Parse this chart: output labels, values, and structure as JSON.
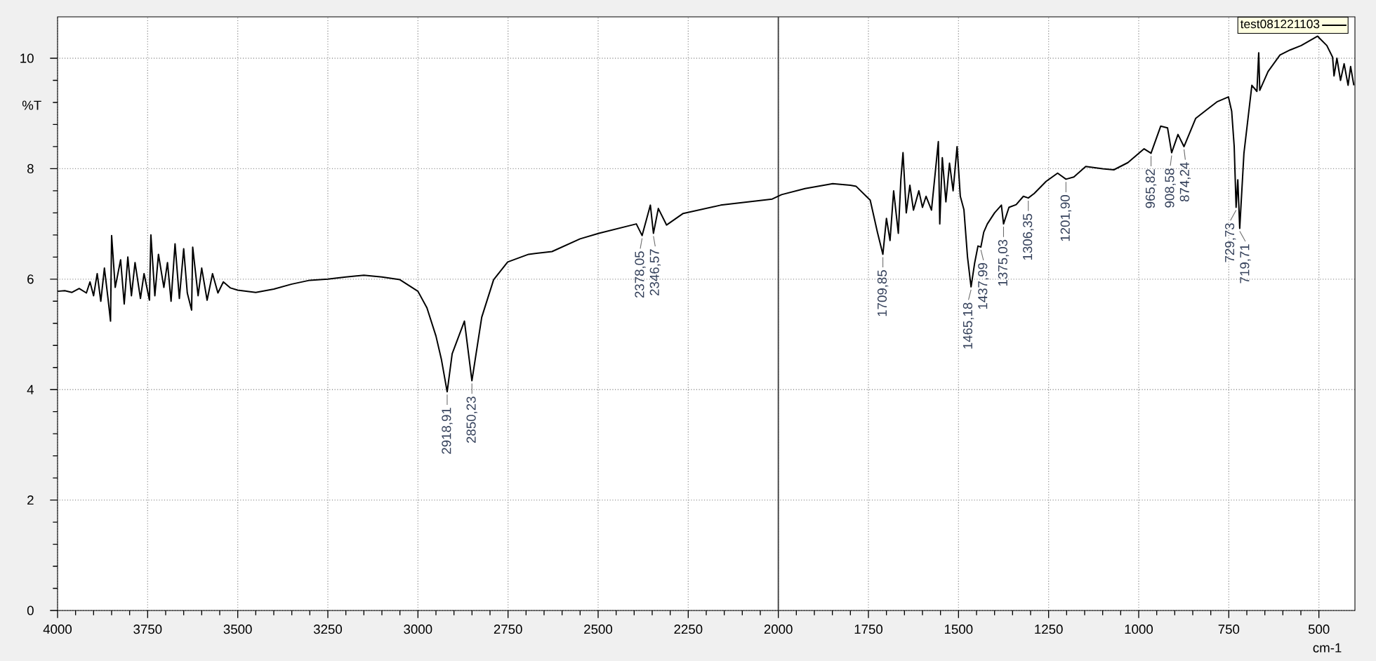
{
  "chart_data": {
    "type": "line",
    "xlabel": "cm-1",
    "ylabel": "%T",
    "xlim": [
      4000,
      400
    ],
    "ylim": [
      0,
      10.75
    ],
    "xticks": [
      4000,
      3750,
      3500,
      3250,
      3000,
      2750,
      2500,
      2250,
      2000,
      1750,
      1500,
      1250,
      1000,
      750,
      500
    ],
    "yticks": [
      0,
      2,
      4,
      6,
      8,
      10
    ],
    "grid": true,
    "legend": "top right",
    "ref_lines": [
      {
        "axis": "x",
        "value": 2000,
        "color": "#404040",
        "line_style": "solid"
      }
    ],
    "series": [
      {
        "name": "test081221103",
        "color": "#000000",
        "x": [
          4000,
          3980,
          3960,
          3940,
          3920,
          3910,
          3900,
          3890,
          3880,
          3870,
          3860,
          3853,
          3850,
          3840,
          3825,
          3815,
          3805,
          3795,
          3785,
          3770,
          3760,
          3745,
          3741,
          3730,
          3720,
          3705,
          3695,
          3685,
          3674,
          3662,
          3650,
          3640,
          3628,
          3625,
          3610,
          3600,
          3585,
          3570,
          3555,
          3540,
          3520,
          3500,
          3450,
          3400,
          3350,
          3300,
          3250,
          3200,
          3150,
          3100,
          3050,
          3000,
          2975,
          2950,
          2935,
          2918.91,
          2905,
          2871,
          2850.23,
          2823,
          2790,
          2751,
          2693,
          2628,
          2550,
          2498,
          2394,
          2378.05,
          2355,
          2346.57,
          2333,
          2310,
          2264,
          2160,
          2017,
          1991,
          1926,
          1849,
          1800,
          1784,
          1745,
          1725,
          1709.85,
          1700,
          1690,
          1680,
          1667,
          1660,
          1654,
          1645,
          1635,
          1625,
          1610,
          1600,
          1590,
          1575,
          1565,
          1556,
          1552,
          1545,
          1535,
          1525,
          1515,
          1504,
          1495,
          1485,
          1475,
          1465.18,
          1455,
          1446,
          1437.99,
          1430,
          1420,
          1400,
          1381,
          1375.03,
          1360,
          1340,
          1320,
          1306.35,
          1290,
          1257,
          1225,
          1201.9,
          1180,
          1147,
          1100,
          1069,
          1030,
          985,
          965.82,
          939,
          920,
          908.58,
          891,
          874.24,
          842,
          809,
          783,
          751,
          742,
          735,
          729.73,
          725,
          719.71,
          708,
          686,
          672,
          667,
          664,
          641,
          608,
          580,
          549,
          504,
          478,
          462,
          458,
          450,
          440,
          430,
          419,
          412,
          403
        ],
        "values": [
          5.78,
          5.79,
          5.76,
          5.83,
          5.75,
          5.95,
          5.7,
          6.1,
          5.6,
          6.2,
          5.65,
          5.24,
          6.79,
          5.85,
          6.35,
          5.55,
          6.4,
          5.7,
          6.3,
          5.65,
          6.1,
          5.62,
          6.8,
          5.7,
          6.45,
          5.85,
          6.3,
          5.6,
          6.64,
          5.65,
          6.55,
          5.75,
          5.44,
          6.58,
          5.7,
          6.2,
          5.62,
          6.1,
          5.75,
          5.95,
          5.84,
          5.8,
          5.76,
          5.82,
          5.91,
          5.98,
          6.0,
          6.04,
          6.07,
          6.04,
          5.99,
          5.78,
          5.48,
          4.97,
          4.55,
          3.96,
          4.65,
          5.24,
          4.16,
          5.31,
          5.99,
          6.31,
          6.45,
          6.5,
          6.73,
          6.83,
          7.0,
          6.79,
          7.34,
          6.83,
          7.28,
          6.98,
          7.19,
          7.34,
          7.45,
          7.53,
          7.64,
          7.73,
          7.7,
          7.68,
          7.43,
          6.85,
          6.45,
          7.1,
          6.7,
          7.6,
          6.83,
          7.8,
          8.29,
          7.2,
          7.7,
          7.25,
          7.6,
          7.3,
          7.5,
          7.25,
          7.9,
          8.49,
          7.0,
          8.2,
          7.4,
          8.1,
          7.6,
          8.4,
          7.5,
          7.26,
          6.4,
          5.86,
          6.3,
          6.6,
          6.58,
          6.85,
          7.0,
          7.2,
          7.34,
          7.0,
          7.3,
          7.35,
          7.5,
          7.47,
          7.55,
          7.77,
          7.92,
          7.81,
          7.85,
          8.04,
          8.0,
          7.98,
          8.11,
          8.36,
          8.28,
          8.77,
          8.74,
          8.29,
          8.62,
          8.4,
          8.91,
          9.08,
          9.21,
          9.3,
          9.04,
          8.4,
          7.3,
          7.8,
          6.92,
          8.28,
          9.51,
          9.4,
          10.1,
          9.42,
          9.76,
          10.06,
          10.15,
          10.23,
          10.4,
          10.23,
          10.02,
          9.68,
          10.0,
          9.6,
          9.9,
          9.51,
          9.85,
          9.51
        ]
      }
    ],
    "annotations": [
      {
        "text": "2918,91",
        "x": 2918.91,
        "y": 3.96
      },
      {
        "text": "2850,23",
        "x": 2850.23,
        "y": 4.16
      },
      {
        "text": "2378,05",
        "x": 2378.05,
        "y": 6.79
      },
      {
        "text": "2346,57",
        "x": 2346.57,
        "y": 6.83
      },
      {
        "text": "1709,85",
        "x": 1709.85,
        "y": 6.45
      },
      {
        "text": "1465,18",
        "x": 1465.18,
        "y": 5.86
      },
      {
        "text": "1437,99",
        "x": 1437.99,
        "y": 6.58
      },
      {
        "text": "1375,03",
        "x": 1375.03,
        "y": 7.0
      },
      {
        "text": "1306,35",
        "x": 1306.35,
        "y": 7.47
      },
      {
        "text": "1201,90",
        "x": 1201.9,
        "y": 7.81
      },
      {
        "text": "965,82",
        "x": 965.82,
        "y": 8.28
      },
      {
        "text": "908,58",
        "x": 908.58,
        "y": 8.29
      },
      {
        "text": "874,24",
        "x": 874.24,
        "y": 8.4
      },
      {
        "text": "729,73",
        "x": 729.73,
        "y": 7.3
      },
      {
        "text": "719,71",
        "x": 719.71,
        "y": 6.92
      }
    ]
  }
}
